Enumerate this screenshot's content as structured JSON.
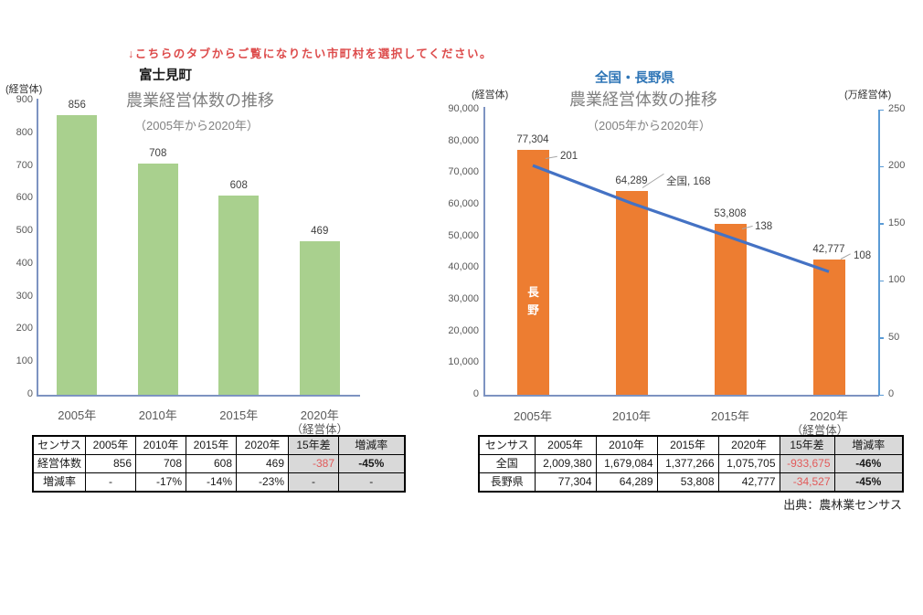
{
  "note": "↓こちらのタブからご覧になりたい市町村を選択してください。",
  "source": "出典：農林業センサス",
  "colors": {
    "green_bar": "#A9D08E",
    "orange_bar": "#ED7D31",
    "line_blue": "#4472C4",
    "secondary_axis_blue": "#5B9BD5",
    "axis_gray_blue": "#7D93C1",
    "title_blue": "#2E75B6",
    "note_red": "#DD4B4B",
    "negative_red": "#E25A5A",
    "cell_gray": "#D9D9D9"
  },
  "chart_data": [
    {
      "type": "bar",
      "title": "富士見町",
      "subtitle": "農業経営体数の推移",
      "period": "（2005年から2020年）",
      "unit_left": "(経営体)",
      "x_axis_note": "（経営体）",
      "categories": [
        "2005年",
        "2010年",
        "2015年",
        "2020年"
      ],
      "values": [
        856,
        708,
        608,
        469
      ],
      "value_labels": [
        "856",
        "708",
        "608",
        "469"
      ],
      "bar_color": "#A9D08E",
      "ylim": [
        0,
        900
      ],
      "ytick_step": 100,
      "grid": false,
      "legend": "none"
    },
    {
      "type": "bar+line",
      "title": "全国・長野県",
      "subtitle": "農業経営体数の推移",
      "period": "（2005年から2020年）",
      "unit_left": "(経営体)",
      "unit_right": "(万経営体)",
      "x_axis_note": "（経営体）",
      "categories": [
        "2005年",
        "2010年",
        "2015年",
        "2020年"
      ],
      "series": [
        {
          "name": "長野",
          "type": "bar",
          "axis": "left",
          "color": "#ED7D31",
          "values": [
            77304,
            64289,
            53808,
            42777
          ],
          "value_labels": [
            "77,304",
            "64,289",
            "53,808",
            "42,777"
          ],
          "in_bar_label": "長野"
        },
        {
          "name": "全国",
          "type": "line",
          "axis": "right",
          "color": "#4472C4",
          "values": [
            201,
            168,
            138,
            108
          ],
          "point_labels": [
            "201",
            "全国, 168",
            "138",
            "108"
          ]
        }
      ],
      "ylim_left": [
        0,
        90000
      ],
      "ytick_step_left": 10000,
      "ylim_right": [
        0,
        250
      ],
      "ytick_step_right": 50,
      "grid": false,
      "legend": "none"
    }
  ],
  "tables": [
    {
      "headers": [
        "センサス",
        "2005年",
        "2010年",
        "2015年",
        "2020年",
        "15年差",
        "増減率"
      ],
      "rows": [
        [
          "経営体数",
          "856",
          "708",
          "608",
          "469",
          "-387",
          "-45%"
        ],
        [
          "増減率",
          "-",
          "-17%",
          "-14%",
          "-23%",
          "-",
          "-"
        ]
      ]
    },
    {
      "headers": [
        "センサス",
        "2005年",
        "2010年",
        "2015年",
        "2020年",
        "15年差",
        "増減率"
      ],
      "rows": [
        [
          "全国",
          "2,009,380",
          "1,679,084",
          "1,377,266",
          "1,075,705",
          "-933,675",
          "-46%"
        ],
        [
          "長野県",
          "77,304",
          "64,289",
          "53,808",
          "42,777",
          "-34,527",
          "-45%"
        ]
      ]
    }
  ]
}
